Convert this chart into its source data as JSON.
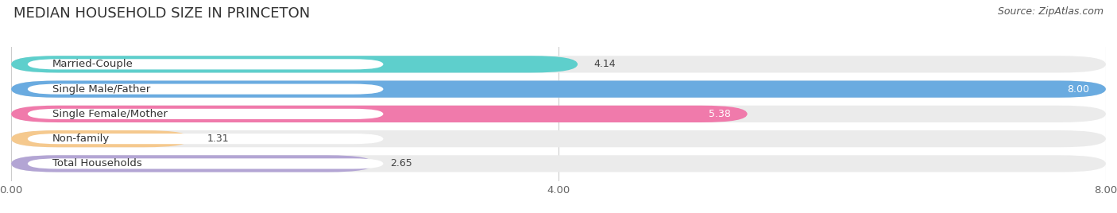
{
  "title": "MEDIAN HOUSEHOLD SIZE IN PRINCETON",
  "source": "Source: ZipAtlas.com",
  "categories": [
    "Married-Couple",
    "Single Male/Father",
    "Single Female/Mother",
    "Non-family",
    "Total Households"
  ],
  "values": [
    4.14,
    8.0,
    5.38,
    1.31,
    2.65
  ],
  "bar_colors": [
    "#5ecfcc",
    "#6aabe0",
    "#f07aab",
    "#f5c98e",
    "#b3a5d4"
  ],
  "xlim": [
    0,
    8.0
  ],
  "xticks": [
    0.0,
    4.0,
    8.0
  ],
  "xtick_labels": [
    "0.00",
    "4.00",
    "8.00"
  ],
  "background_color": "#ffffff",
  "bar_bg_color": "#ebebeb",
  "title_fontsize": 13,
  "label_fontsize": 9.5,
  "value_fontsize": 9,
  "source_fontsize": 9
}
